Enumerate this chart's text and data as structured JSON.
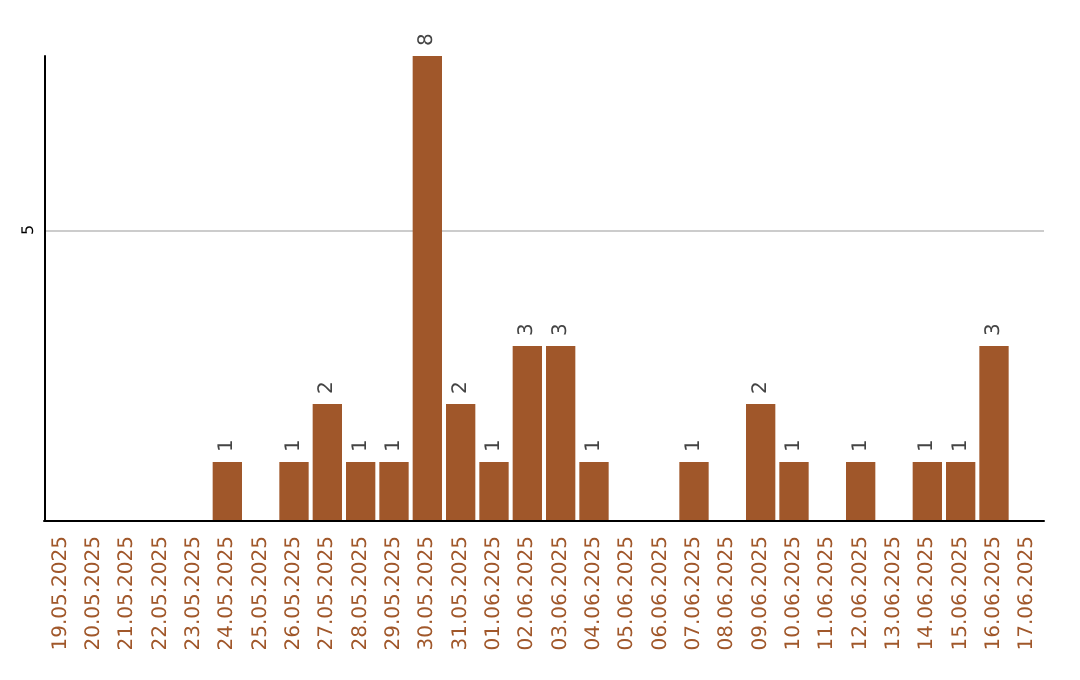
{
  "chart_data": {
    "type": "bar",
    "categories": [
      "19.05.2025",
      "20.05.2025",
      "21.05.2025",
      "22.05.2025",
      "23.05.2025",
      "24.05.2025",
      "25.05.2025",
      "26.05.2025",
      "27.05.2025",
      "28.05.2025",
      "29.05.2025",
      "30.05.2025",
      "31.05.2025",
      "01.06.2025",
      "02.06.2025",
      "03.06.2025",
      "04.06.2025",
      "05.06.2025",
      "06.06.2025",
      "07.06.2025",
      "08.06.2025",
      "09.06.2025",
      "10.06.2025",
      "11.06.2025",
      "12.06.2025",
      "13.06.2025",
      "14.06.2025",
      "15.06.2025",
      "16.06.2025",
      "17.06.2025"
    ],
    "values": [
      0,
      0,
      0,
      0,
      0,
      1,
      0,
      1,
      2,
      1,
      1,
      8,
      2,
      1,
      3,
      3,
      1,
      0,
      0,
      1,
      0,
      2,
      1,
      0,
      1,
      0,
      1,
      1,
      3,
      0
    ],
    "value_labels": [
      null,
      null,
      null,
      null,
      null,
      "1",
      null,
      "1",
      "2",
      "1",
      "1",
      "8",
      "2",
      "1",
      "3",
      "3",
      "1",
      null,
      null,
      "1",
      null,
      "2",
      "1",
      null,
      "1",
      null,
      "1",
      "1",
      "3",
      null
    ],
    "color": "#a0572a",
    "ylim": [
      0,
      8
    ],
    "yticks": [
      5
    ],
    "grid": "y"
  }
}
